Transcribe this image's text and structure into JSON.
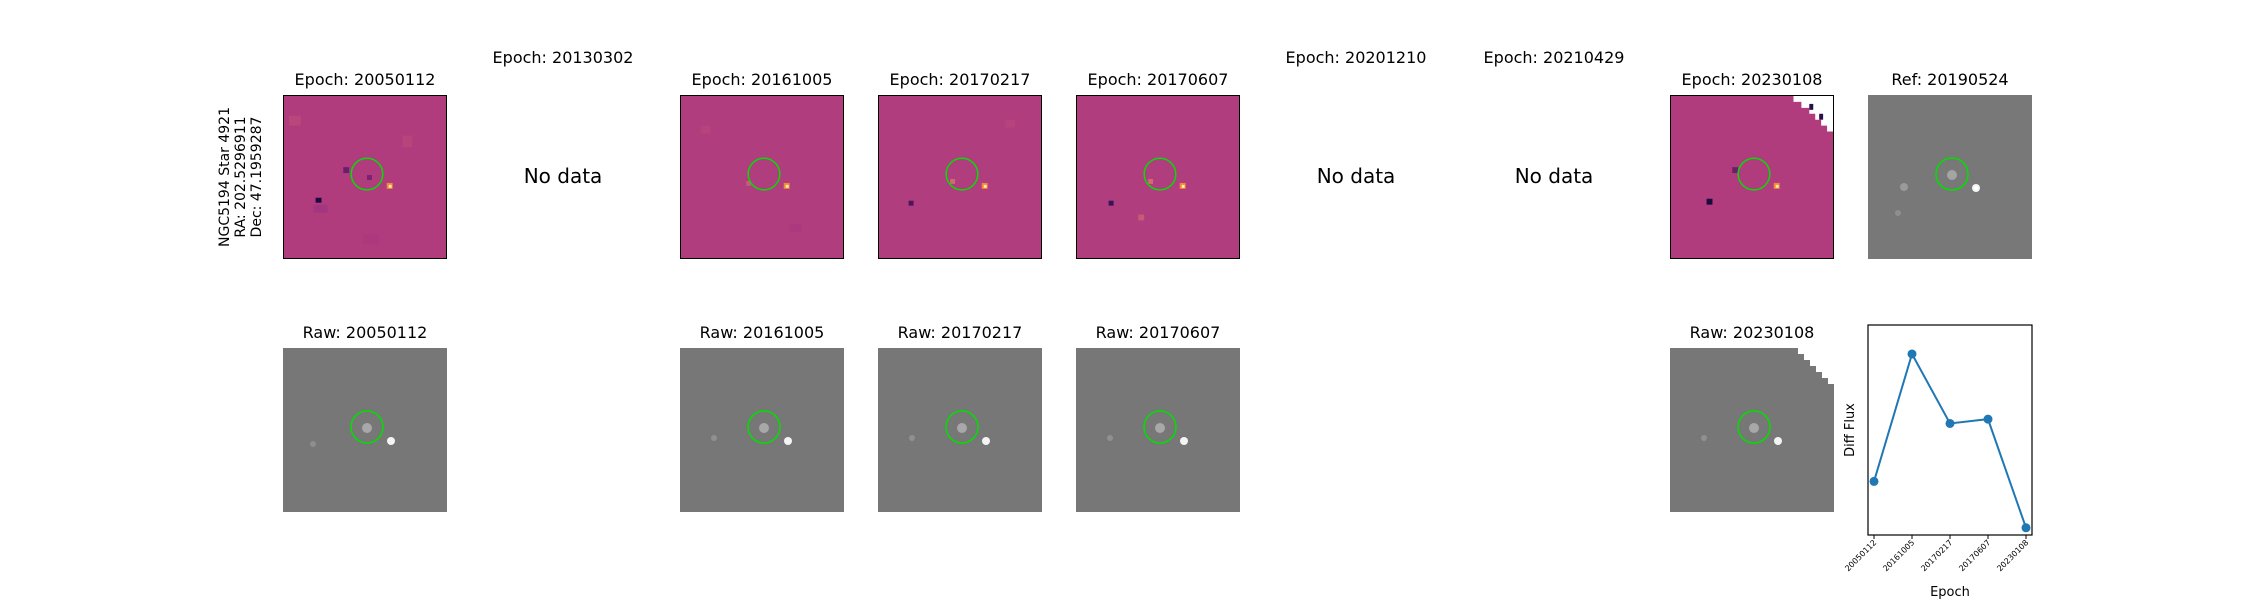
{
  "object_label": {
    "line1": "NGC5194 Star 4921",
    "line2": "RA: 202.5296911",
    "line3": "Dec: 47.1959287"
  },
  "top_row": [
    {
      "title": "Epoch: 20050112",
      "has_data": true
    },
    {
      "title": "Epoch: 20130302",
      "has_data": false,
      "message": "No data"
    },
    {
      "title": "Epoch: 20161005",
      "has_data": true
    },
    {
      "title": "Epoch: 20170217",
      "has_data": true
    },
    {
      "title": "Epoch: 20170607",
      "has_data": true
    },
    {
      "title": "Epoch: 20201210",
      "has_data": false,
      "message": "No data"
    },
    {
      "title": "Epoch: 20210429",
      "has_data": false,
      "message": "No data"
    },
    {
      "title": "Epoch: 20230108",
      "has_data": true
    },
    {
      "title": "Ref: 20190524",
      "has_data": true
    }
  ],
  "bottom_row": [
    {
      "title": "Raw: 20050112"
    },
    {
      "title": "Raw: 20161005"
    },
    {
      "title": "Raw: 20170217"
    },
    {
      "title": "Raw: 20170607"
    },
    {
      "title": "Raw: 20230108"
    }
  ],
  "colors": {
    "diff_background": "#b33f7f",
    "raw_background": "#7a7a7a",
    "aperture_circle": "#00e000",
    "series_line": "#1f77b4"
  },
  "chart_data": {
    "type": "line",
    "xlabel": "Epoch",
    "ylabel": "Diff Flux",
    "categories": [
      "20050112",
      "20161005",
      "20170217",
      "20170607",
      "20230108"
    ],
    "values": [
      0.12,
      1.0,
      0.52,
      0.55,
      -0.2
    ],
    "ylim": [
      -0.25,
      1.2
    ],
    "grid": false,
    "marker": "circle"
  }
}
